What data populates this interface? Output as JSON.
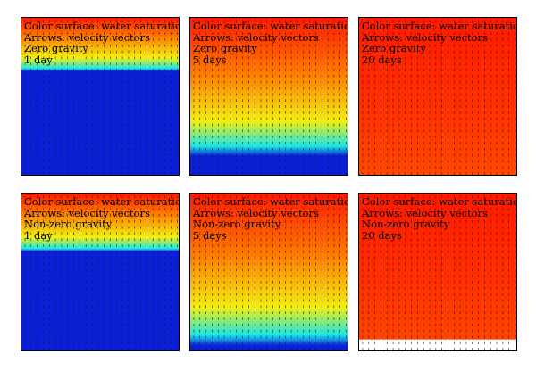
{
  "panels": [
    {
      "lines": [
        "Color surface: water saturation",
        "Arrows: velocity vectors",
        "Zero gravity",
        "1 day"
      ],
      "water_front_fraction": 0.34,
      "dry_region": false
    },
    {
      "lines": [
        "Color surface: water saturation",
        "Arrows: velocity vectors",
        "Zero gravity",
        "5 days"
      ],
      "water_front_fraction": 0.88,
      "dry_region": false
    },
    {
      "lines": [
        "Color surface: water saturation",
        "Arrows: velocity vectors",
        "Zero gravity",
        "20 days"
      ],
      "water_front_fraction": 1.0,
      "dry_region": false
    },
    {
      "lines": [
        "Color surface: water saturation",
        "Arrows: velocity vectors",
        "Non-zero gravity",
        "1 day"
      ],
      "water_front_fraction": 0.37,
      "dry_region": false
    },
    {
      "lines": [
        "Color surface: water saturation",
        "Arrows: velocity vectors",
        "Non-zero gravity",
        "5 days"
      ],
      "water_front_fraction": 0.97,
      "dry_region": false
    },
    {
      "lines": [
        "Color surface: water saturation",
        "Arrows: velocity vectors",
        "Non-zero gravity",
        "20 days"
      ],
      "water_front_fraction": 1.0,
      "dry_region": true
    }
  ],
  "colors": {
    "saturated": "#ff1a00",
    "orange": "#ff7a00",
    "yellow": "#f2ef10",
    "cyan": "#19e6e6",
    "dry": "#0a1fd6",
    "arrow": "#1a1a1a"
  }
}
